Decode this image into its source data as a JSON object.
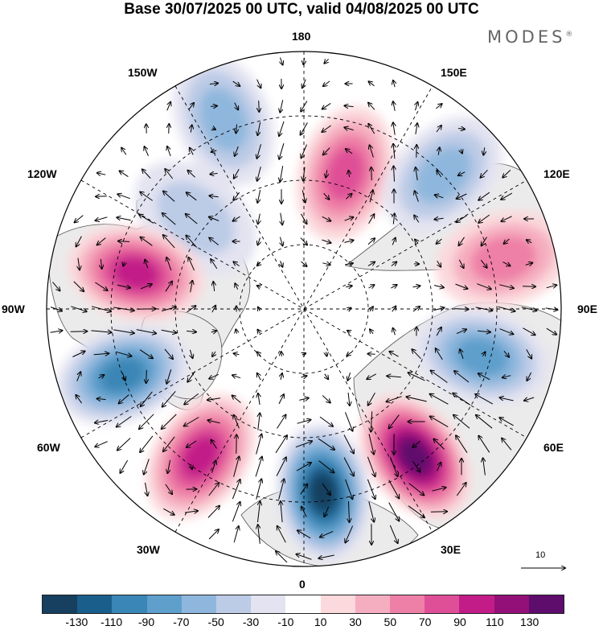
{
  "title": "Base 30/07/2025 00 UTC, valid 04/08/2025 00 UTC",
  "brand": "MODES",
  "brand_mark": "®",
  "lon_labels": {
    "n180": "180",
    "w150": "150W",
    "e150": "150E",
    "w120": "120W",
    "e120": "120E",
    "w90": "90W",
    "e90": "90E",
    "w60": "60W",
    "e60": "60E",
    "w30": "30W",
    "e30": "30E",
    "s0": "0"
  },
  "reference_vector_label": "10",
  "colorbar": {
    "colors": [
      "#173f5f",
      "#1a5f8c",
      "#3a86b6",
      "#5f9fcc",
      "#8fb7dd",
      "#bccbe6",
      "#e3e3f1",
      "#ffffff",
      "#fbd9dc",
      "#f5aebf",
      "#ee7fa6",
      "#df4f97",
      "#c21c88",
      "#921078",
      "#5e0d6d"
    ],
    "tick_labels": [
      "-130",
      "-110",
      "-90",
      "-70",
      "-50",
      "-30",
      "-10",
      "10",
      "30",
      "50",
      "70",
      "90",
      "110",
      "130"
    ]
  },
  "anomaly_centers": [
    {
      "name": "pos-north-180",
      "lon_deg": 163,
      "colat_deg": 33,
      "value": 65
    },
    {
      "name": "neg-150w",
      "lon_deg": -157,
      "colat_deg": 48,
      "value": -45
    },
    {
      "name": "neg-120w",
      "lon_deg": -130,
      "colat_deg": 33,
      "value": -35
    },
    {
      "name": "pos-105w",
      "lon_deg": -102,
      "colat_deg": 40,
      "value": 95
    },
    {
      "name": "neg-75w",
      "lon_deg": -70,
      "colat_deg": 45,
      "value": -85
    },
    {
      "name": "pos-45w",
      "lon_deg": -35,
      "colat_deg": 42,
      "value": 95
    },
    {
      "name": "neg-10e",
      "lon_deg": 6,
      "colat_deg": 43,
      "value": -135
    },
    {
      "name": "pos-40e",
      "lon_deg": 37,
      "colat_deg": 43,
      "value": 135
    },
    {
      "name": "neg-70e",
      "lon_deg": 75,
      "colat_deg": 43,
      "value": -75
    },
    {
      "name": "pos-100e",
      "lon_deg": 104,
      "colat_deg": 48,
      "value": 60
    },
    {
      "name": "neg-130e",
      "lon_deg": 134,
      "colat_deg": 45,
      "value": -50
    }
  ]
}
